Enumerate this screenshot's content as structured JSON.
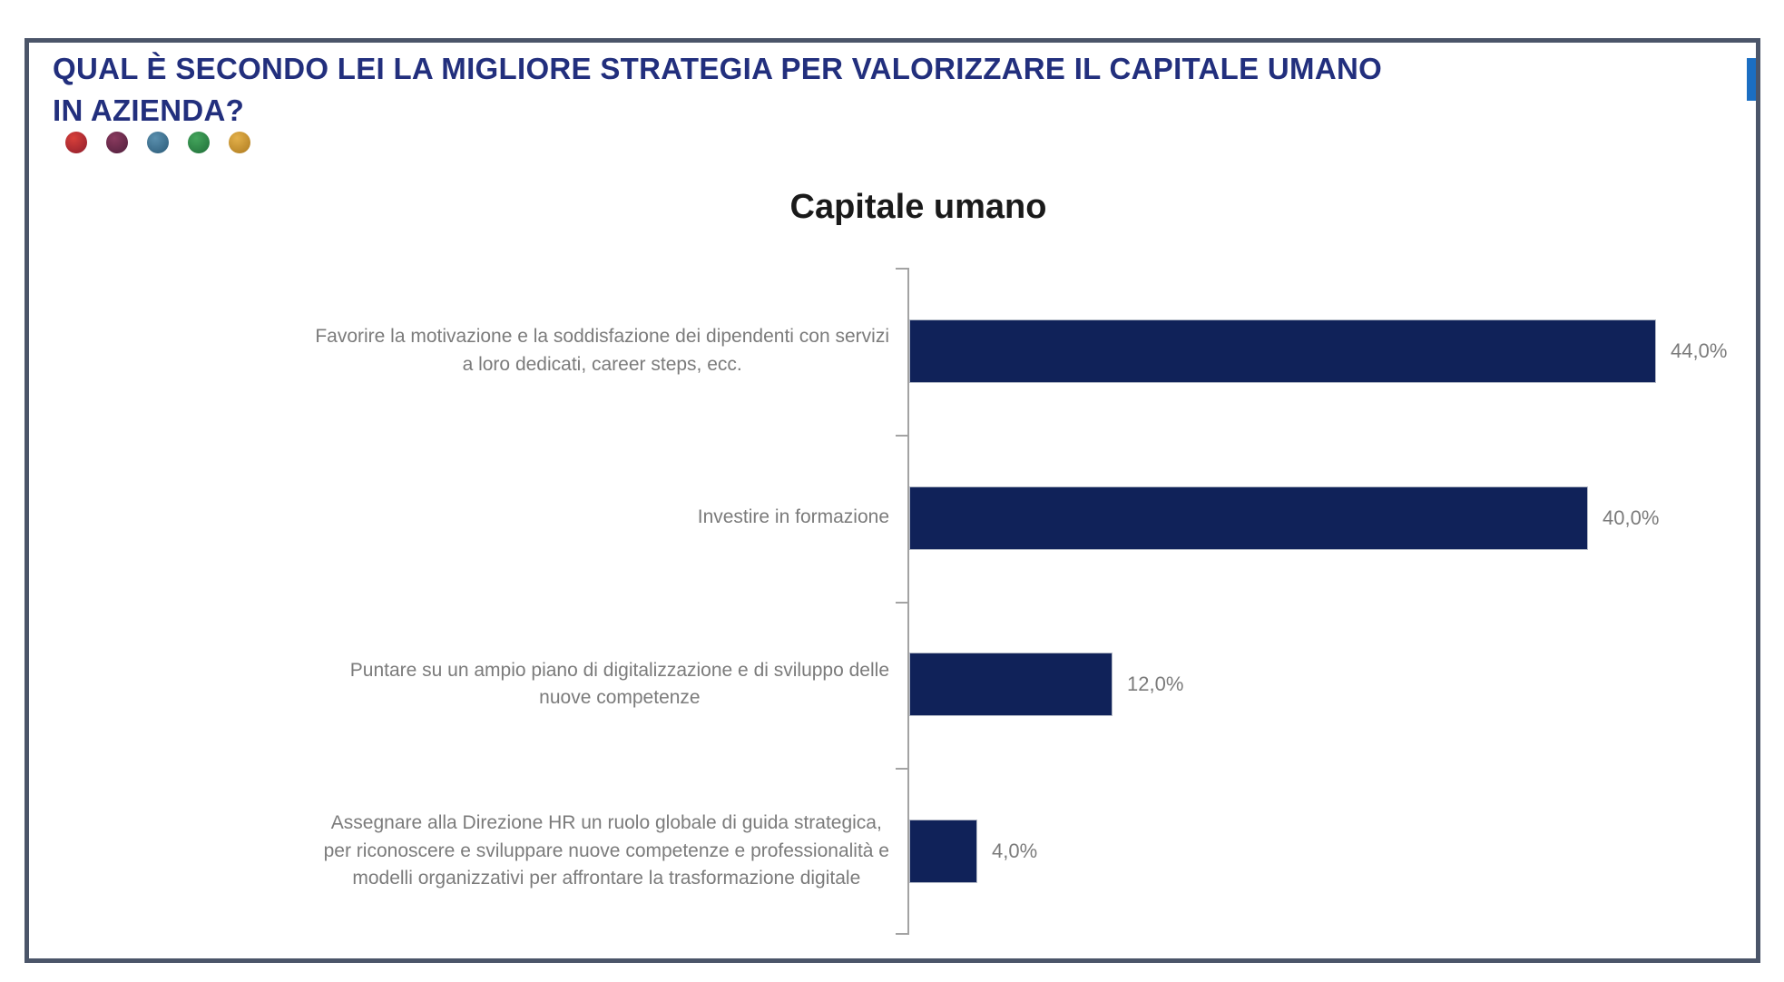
{
  "header": {
    "title": "QUAL È SECONDO LEI LA MIGLIORE STRATEGIA PER VALORIZZARE IL CAPITALE UMANO\nIN AZIENDA?"
  },
  "decorations": {
    "dots": [
      {
        "name": "red-dot",
        "from": "#d8403a",
        "to": "#8e1c2c"
      },
      {
        "name": "maroon-dot",
        "from": "#8a3a5e",
        "to": "#4f1f3c"
      },
      {
        "name": "blue-dot",
        "from": "#5a8fae",
        "to": "#2b5a77"
      },
      {
        "name": "green-dot",
        "from": "#44a55c",
        "to": "#1f6e38"
      },
      {
        "name": "gold-dot",
        "from": "#e3b04a",
        "to": "#ad7a1f"
      }
    ],
    "blue_marker_color": "#1b6ec2"
  },
  "colors": {
    "title": "#222f7d",
    "chart_title": "#1a1a1a",
    "bar": "#102259",
    "label_text": "#7b7b7b",
    "axis": "#a3a3a3",
    "frame_border": "#4b5569"
  },
  "chart_data": {
    "type": "bar",
    "orientation": "horizontal",
    "title": "Capitale umano",
    "categories": [
      "Favorire la motivazione e la soddisfazione dei dipendenti con servizi a loro dedicati, career steps, ecc.",
      "Investire in formazione",
      "Puntare su un ampio piano di digitalizzazione e di sviluppo delle nuove competenze",
      "Assegnare alla Direzione HR un ruolo globale di guida strategica, per riconoscere e sviluppare nuove competenze e professionalità e modelli organizzativi per affrontare la trasformazione digitale"
    ],
    "category_display_lines": [
      [
        "Favorire la motivazione e la soddisfazione dei dipendenti con servizi",
        "a loro dedicati, career steps, ecc."
      ],
      [
        "Investire in formazione"
      ],
      [
        "Puntare su un ampio piano di digitalizzazione e di sviluppo delle",
        "nuove competenze"
      ],
      [
        "Assegnare alla Direzione HR un ruolo globale di guida strategica,",
        "per riconoscere e sviluppare nuove competenze e professionalità e",
        "modelli organizzativi per affrontare la trasformazione digitale"
      ]
    ],
    "values": [
      44.0,
      40.0,
      12.0,
      4.0
    ],
    "value_labels": [
      "44,0%",
      "40,0%",
      "12,0%",
      "4,0%"
    ],
    "xlim": [
      0,
      47
    ],
    "grid": false,
    "legend": false
  }
}
